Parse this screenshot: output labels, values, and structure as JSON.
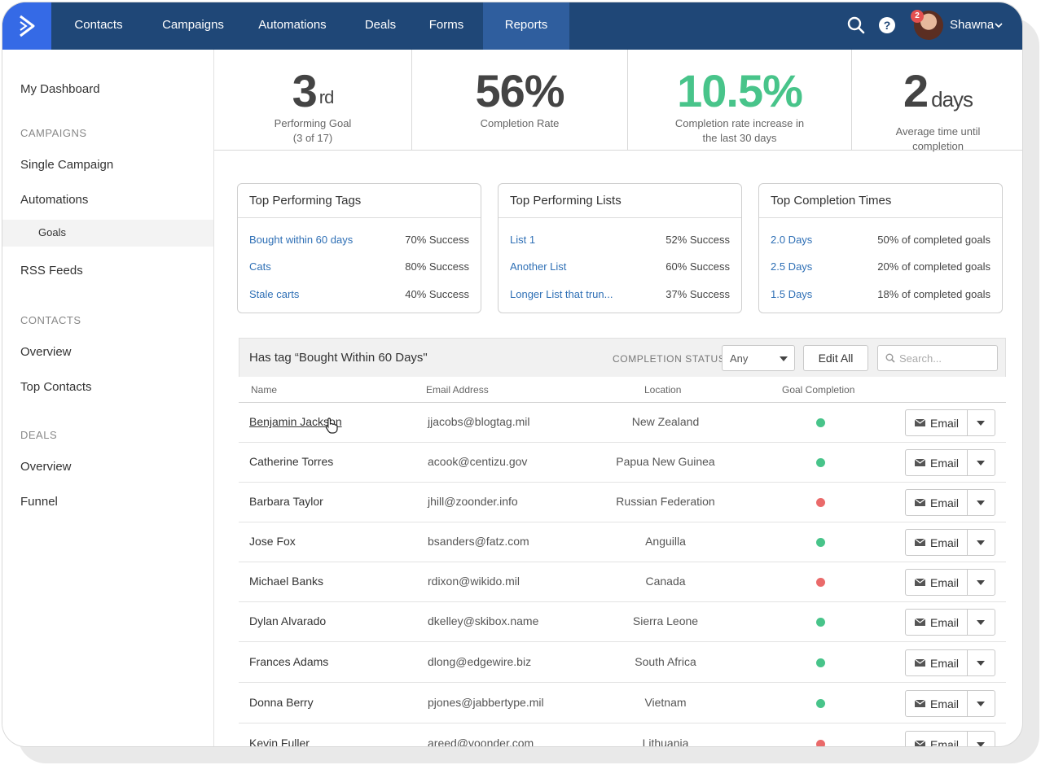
{
  "nav": {
    "items": [
      "Contacts",
      "Campaigns",
      "Automations",
      "Deals",
      "Forms",
      "Reports"
    ],
    "active": "Reports",
    "notification_count": "2",
    "user_name": "Shawna"
  },
  "sidebar": {
    "dashboard": "My Dashboard",
    "campaigns_heading": "CAMPAIGNS",
    "single_campaign": "Single Campaign",
    "automations": "Automations",
    "goals": "Goals",
    "rss": "RSS Feeds",
    "contacts_heading": "CONTACTS",
    "contacts_overview": "Overview",
    "top_contacts": "Top Contacts",
    "deals_heading": "DEALS",
    "deals_overview": "Overview",
    "funnel": "Funnel"
  },
  "stats": {
    "goal_rank": "3",
    "goal_suffix": "rd",
    "goal_label_1": "Performing Goal",
    "goal_label_2": "(3 of 17)",
    "completion_rate": "56%",
    "completion_label": "Completion Rate",
    "increase": "10.5%",
    "increase_label_1": "Completion rate increase in",
    "increase_label_2": "the last 30 days",
    "days_value": "2",
    "days_unit": "days",
    "days_label_1": "Average time until",
    "days_label_2": "completion",
    "accent_green": "#48c48a"
  },
  "cards": {
    "tags": {
      "title": "Top Performing Tags",
      "rows": [
        {
          "k": "Bought within 60 days",
          "v": "70% Success"
        },
        {
          "k": "Cats",
          "v": "80% Success"
        },
        {
          "k": "Stale carts",
          "v": "40% Success"
        }
      ]
    },
    "lists": {
      "title": "Top Performing Lists",
      "rows": [
        {
          "k": "List 1",
          "v": "52% Success"
        },
        {
          "k": "Another List",
          "v": "60% Success"
        },
        {
          "k": "Longer List that trun...",
          "v": "37% Success"
        }
      ]
    },
    "times": {
      "title": "Top Completion Times",
      "rows": [
        {
          "k": "2.0 Days",
          "v": "50% of completed goals"
        },
        {
          "k": "2.5 Days",
          "v": "20% of completed goals"
        },
        {
          "k": "1.5 Days",
          "v": "18% of completed goals"
        }
      ]
    }
  },
  "table": {
    "title": "Has tag “Bought Within 60 Days\"",
    "completion_status_label": "COMPLETION STATUS",
    "status_value": "Any",
    "edit_all": "Edit All",
    "search_placeholder": "Search...",
    "columns": [
      "Name",
      "Email Address",
      "Location",
      "Goal Completion"
    ],
    "email_button": "Email",
    "rows": [
      {
        "name": "Benjamin Jackson",
        "email": "jjacobs@blogtag.mil",
        "location": "New Zealand",
        "status": "complete"
      },
      {
        "name": "Catherine Torres",
        "email": "acook@centizu.gov",
        "location": "Papua New Guinea",
        "status": "complete"
      },
      {
        "name": "Barbara Taylor",
        "email": "jhill@zoonder.info",
        "location": "Russian Federation",
        "status": "incomplete"
      },
      {
        "name": "Jose Fox",
        "email": "bsanders@fatz.com",
        "location": "Anguilla",
        "status": "complete"
      },
      {
        "name": "Michael Banks",
        "email": "rdixon@wikido.mil",
        "location": "Canada",
        "status": "incomplete"
      },
      {
        "name": "Dylan Alvarado",
        "email": "dkelley@skibox.name",
        "location": "Sierra Leone",
        "status": "complete"
      },
      {
        "name": "Frances Adams",
        "email": "dlong@edgewire.biz",
        "location": "South Africa",
        "status": "complete"
      },
      {
        "name": "Donna Berry",
        "email": "pjones@jabbertype.mil",
        "location": "Vietnam",
        "status": "complete"
      },
      {
        "name": "Kevin Fuller",
        "email": "areed@voonder.com",
        "location": "Lithuania",
        "status": "incomplete"
      }
    ]
  }
}
